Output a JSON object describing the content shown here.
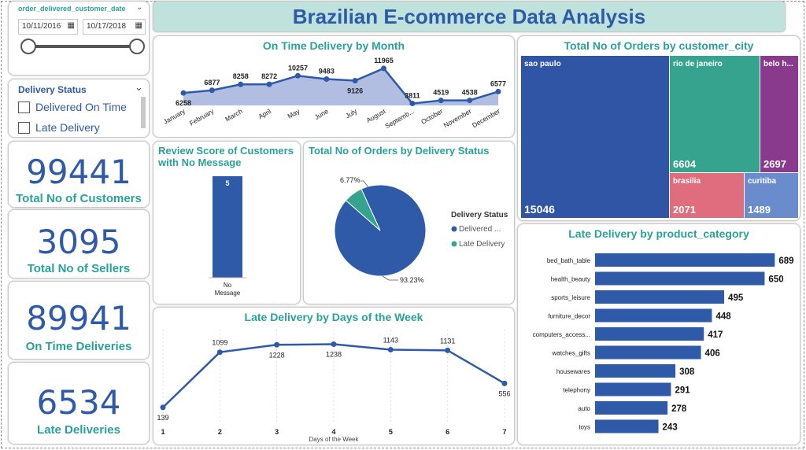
{
  "title": "Brazilian E-commerce Data Analysis",
  "date_filter": {
    "field": "order_delivered_customer_date",
    "start": "10/11/2016",
    "end": "10/17/2018"
  },
  "status_filter": {
    "title": "Delivery Status",
    "options": [
      "Delivered On Time",
      "Late Delivery"
    ]
  },
  "kpis": {
    "customers": {
      "value": "99441",
      "label": "Total No of Customers"
    },
    "sellers": {
      "value": "3095",
      "label": "Total No of Sellers"
    },
    "on_time": {
      "value": "89941",
      "label": "On Time Deliveries"
    },
    "late": {
      "value": "6534",
      "label": "Late Deliveries"
    }
  },
  "colors": {
    "accent": "#2aa198",
    "blue": "#2f5aa8",
    "area": "#a9b7df",
    "teal": "#36a38f",
    "purple": "#8a3a8c",
    "pink": "#e06d7d",
    "lightblue": "#6b8ccc"
  },
  "chart_data": [
    {
      "id": "monthly",
      "type": "area",
      "title": "On Time Delivery by Month",
      "categories": [
        "January",
        "February",
        "March",
        "April",
        "May",
        "June",
        "July",
        "August",
        "Septemb...",
        "October",
        "November",
        "December"
      ],
      "values": [
        6258,
        6877,
        8258,
        8272,
        10257,
        9483,
        9126,
        11965,
        3811,
        4519,
        4538,
        6577
      ]
    },
    {
      "id": "review",
      "type": "bar",
      "title": "Review Score of Customers with No Message",
      "categories": [
        "No Message"
      ],
      "values": [
        5
      ]
    },
    {
      "id": "status_pie",
      "type": "pie",
      "title": "Total No of Orders by Delivery Status",
      "legend_title": "Delivery Status",
      "legend_placement": "right",
      "slices": [
        {
          "name": "Delivered ...",
          "value": 93.23,
          "label": "93.23%",
          "color": "#2f5aa8"
        },
        {
          "name": "Late Delivery",
          "value": 6.77,
          "label": "6.77%",
          "color": "#36a38f"
        }
      ]
    },
    {
      "id": "weekday",
      "type": "line",
      "title": "Late Delivery by Days of the Week",
      "xlabel": "Days of the Week",
      "x": [
        1,
        2,
        3,
        4,
        5,
        6,
        7
      ],
      "values": [
        139,
        1099,
        1228,
        1238,
        1143,
        1131,
        556
      ]
    },
    {
      "id": "city",
      "type": "treemap",
      "title": "Total No of Orders by customer_city",
      "items": [
        {
          "name": "sao paulo",
          "value": 15046,
          "color": "#2f55a4"
        },
        {
          "name": "rio de janeiro",
          "value": 6604,
          "color": "#36a38f"
        },
        {
          "name": "belo h...",
          "value": 2697,
          "color": "#8a3a8c"
        },
        {
          "name": "brasilia",
          "value": 2071,
          "color": "#e06d7d"
        },
        {
          "name": "curitiba",
          "value": 1489,
          "color": "#6b8ccc"
        }
      ]
    },
    {
      "id": "category",
      "type": "bar",
      "orientation": "horizontal",
      "title": "Late Delivery by product_category",
      "categories": [
        "bed_bath_table",
        "health_beauty",
        "sports_leisure",
        "furniture_decor",
        "computers_access...",
        "watches_gifts",
        "housewares",
        "telephony",
        "auto",
        "toys"
      ],
      "values": [
        689,
        650,
        495,
        448,
        417,
        406,
        308,
        291,
        278,
        243
      ]
    }
  ]
}
